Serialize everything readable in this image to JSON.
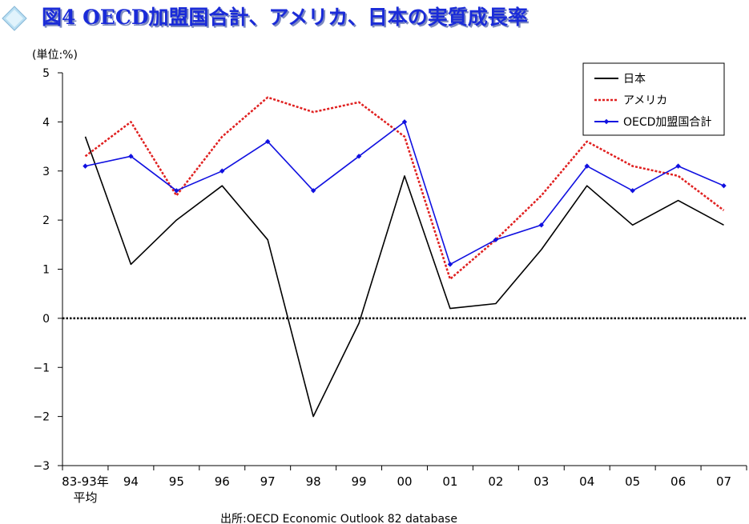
{
  "header": {
    "title": "図4 OECD加盟国合計、アメリカ、日本の実質成長率"
  },
  "colors": {
    "title_fill": "#1a2bd8",
    "title_shadow": "#7d8ac0",
    "japan": "#000000",
    "usa": "#e02020",
    "oecd": "#1010e0",
    "zero_line": "#000000"
  },
  "source_note": "出所:OECD Economic Outlook 82 database",
  "chart_data": {
    "type": "line",
    "unit_label": "(単位:%)",
    "categories": [
      "83-93年\n平均",
      "94",
      "95",
      "96",
      "97",
      "98",
      "99",
      "00",
      "01",
      "02",
      "03",
      "04",
      "05",
      "06",
      "07"
    ],
    "ylim": [
      -3,
      5
    ],
    "yticks": [
      5,
      4,
      3,
      2,
      1,
      0,
      -1,
      -2,
      -3
    ],
    "ytick_labels": [
      "5",
      "4",
      "3",
      "2",
      "1",
      "0",
      "−1",
      "−2",
      "−3"
    ],
    "legend_position": "top-right",
    "series": [
      {
        "name": "日本",
        "color": "#000000",
        "style": "solid",
        "values": [
          3.7,
          1.1,
          2.0,
          2.7,
          1.6,
          -2.0,
          -0.1,
          2.9,
          0.2,
          0.3,
          1.4,
          2.7,
          1.9,
          2.4,
          1.9
        ]
      },
      {
        "name": "アメリカ",
        "color": "#e02020",
        "style": "dotted",
        "values": [
          3.3,
          4.0,
          2.5,
          3.7,
          4.5,
          4.2,
          4.4,
          3.7,
          0.8,
          1.6,
          2.5,
          3.6,
          3.1,
          2.9,
          2.2
        ]
      },
      {
        "name": "OECD加盟国合計",
        "color": "#1010e0",
        "style": "solid-marker",
        "values": [
          3.1,
          3.3,
          2.6,
          3.0,
          3.6,
          2.6,
          3.3,
          4.0,
          1.1,
          1.6,
          1.9,
          3.1,
          2.6,
          3.1,
          2.7
        ]
      }
    ]
  }
}
